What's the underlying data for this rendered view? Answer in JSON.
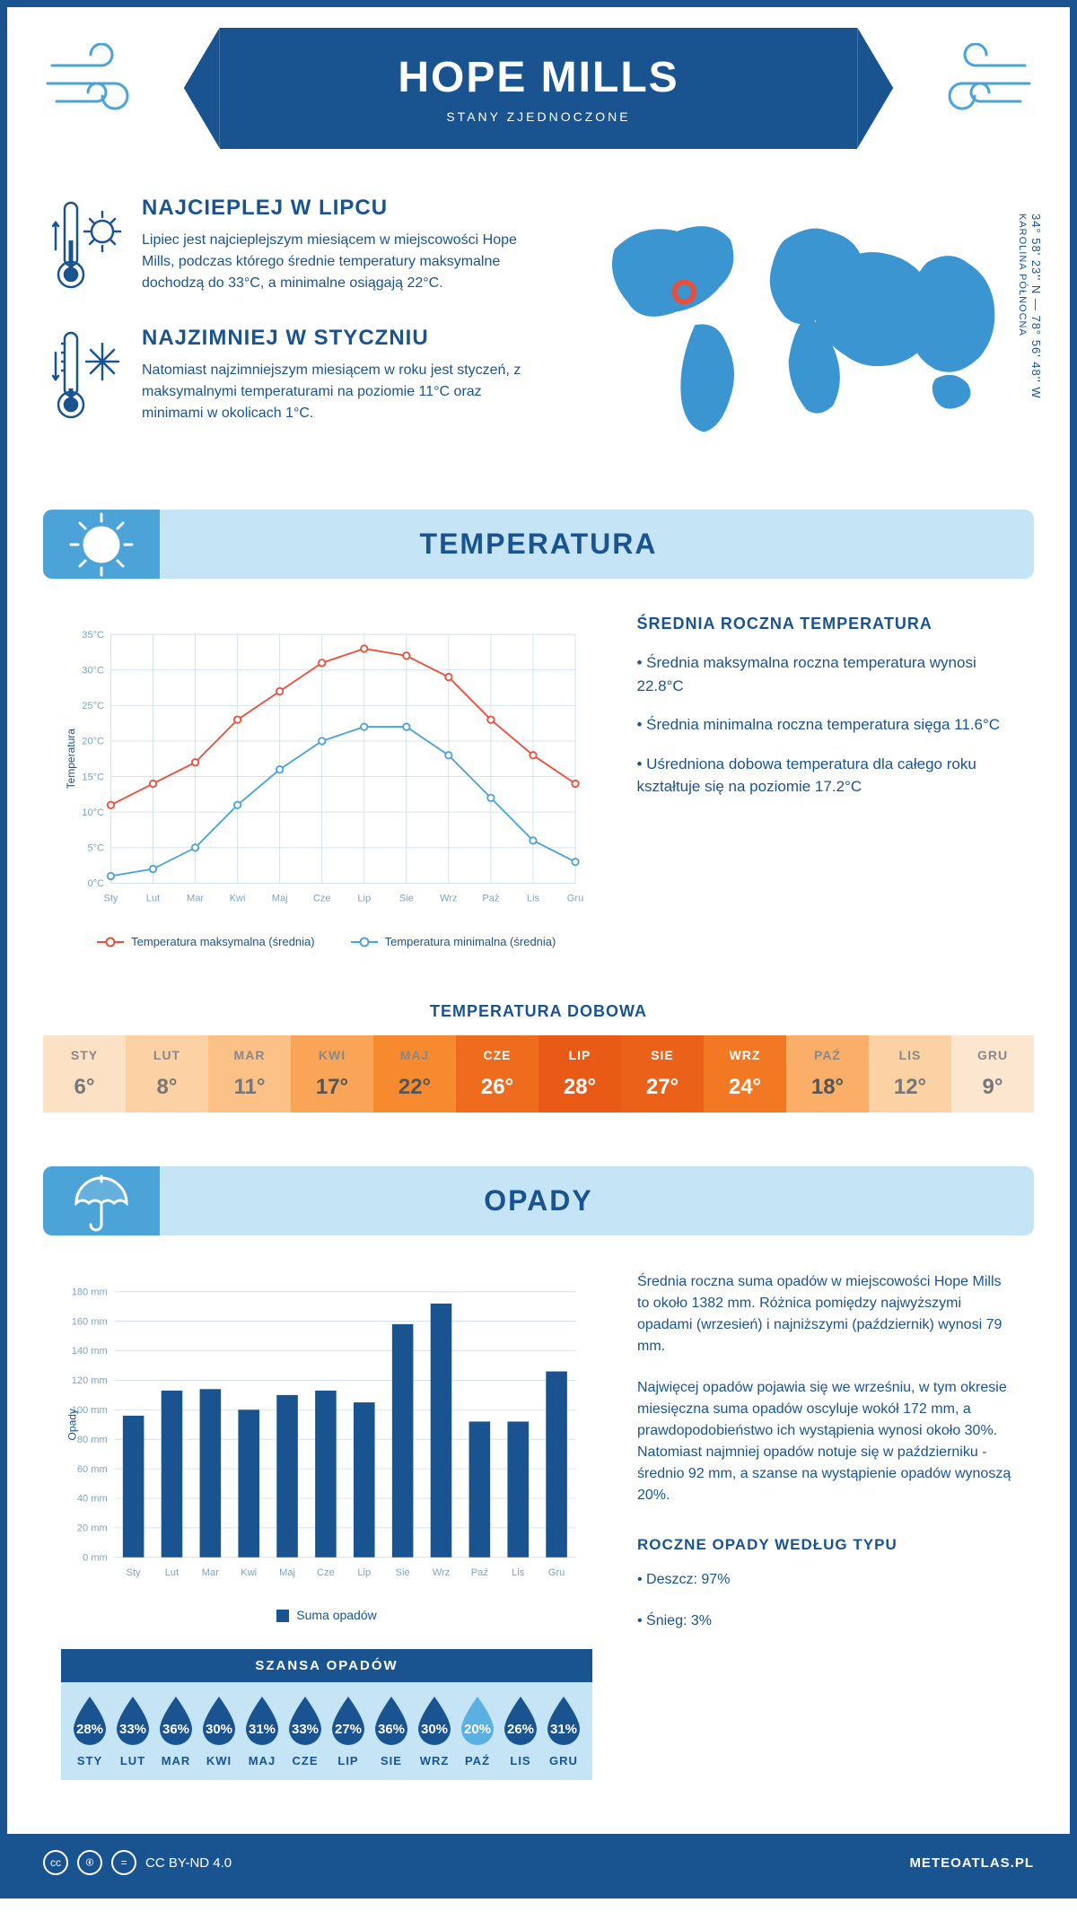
{
  "header": {
    "title": "HOPE MILLS",
    "country": "STANY ZJEDNOCZONE"
  },
  "intro": {
    "hot": {
      "title": "NAJCIEPLEJ W LIPCU",
      "text": "Lipiec jest najcieplejszym miesiącem w miejscowości Hope Mills, podczas którego średnie temperatury maksymalne dochodzą do 33°C, a minimalne osiągają 22°C."
    },
    "cold": {
      "title": "NAJZIMNIEJ W STYCZNIU",
      "text": "Natomiast najzimniejszym miesiącem w roku jest styczeń, z maksymalnymi temperaturami na poziomie 11°C oraz minimami w okolicach 1°C."
    },
    "coords": "34° 58' 23'' N — 78° 56' 48'' W",
    "region": "KAROLINA PÓŁNOCNA"
  },
  "temp_section": {
    "heading": "TEMPERATURA",
    "chart": {
      "type": "line",
      "months": [
        "Sty",
        "Lut",
        "Mar",
        "Kwi",
        "Maj",
        "Cze",
        "Lip",
        "Sie",
        "Wrz",
        "Paź",
        "Lis",
        "Gru"
      ],
      "max_series": [
        11,
        14,
        17,
        23,
        27,
        31,
        33,
        32,
        29,
        23,
        18,
        14
      ],
      "min_series": [
        1,
        2,
        5,
        11,
        16,
        20,
        22,
        22,
        18,
        12,
        6,
        3
      ],
      "ylim": [
        0,
        35
      ],
      "ytick_step": 5,
      "yunit": "°C",
      "ylabel": "Temperatura",
      "max_color": "#e8503c",
      "min_color": "#4ba3d8",
      "grid_color": "#d0e0ed",
      "axis_text_color": "#7da5c4",
      "legend_max": "Temperatura maksymalna (średnia)",
      "legend_min": "Temperatura minimalna (średnia)"
    },
    "side": {
      "title": "ŚREDNIA ROCZNA TEMPERATURA",
      "b1": "• Średnia maksymalna roczna temperatura wynosi 22.8°C",
      "b2": "• Średnia minimalna roczna temperatura sięga 11.6°C",
      "b3": "• Uśredniona dobowa temperatura dla całego roku kształtuje się na poziomie 17.2°C"
    },
    "daily": {
      "title": "TEMPERATURA DOBOWA",
      "months": [
        "STY",
        "LUT",
        "MAR",
        "KWI",
        "MAJ",
        "CZE",
        "LIP",
        "SIE",
        "WRZ",
        "PAŹ",
        "LIS",
        "GRU"
      ],
      "values": [
        "6°",
        "8°",
        "11°",
        "17°",
        "22°",
        "26°",
        "28°",
        "27°",
        "24°",
        "18°",
        "12°",
        "9°"
      ],
      "bg_colors": [
        "#fde1c4",
        "#fcd2a5",
        "#fbc186",
        "#f9a457",
        "#f78a2f",
        "#ef6c1f",
        "#e95a17",
        "#eb6119",
        "#f27824",
        "#faae68",
        "#fcd2a5",
        "#fde6cf"
      ],
      "text_colors": [
        "#888",
        "#888",
        "#888",
        "#888",
        "#888",
        "#fff",
        "#fff",
        "#fff",
        "#fff",
        "#888",
        "#888",
        "#888"
      ],
      "value_colors": [
        "#777",
        "#777",
        "#777",
        "#555",
        "#555",
        "#fff",
        "#fff",
        "#fff",
        "#fff",
        "#555",
        "#777",
        "#777"
      ]
    }
  },
  "precip_section": {
    "heading": "OPADY",
    "chart": {
      "type": "bar",
      "months": [
        "Sty",
        "Lut",
        "Mar",
        "Kwi",
        "Maj",
        "Cze",
        "Lip",
        "Sie",
        "Wrz",
        "Paź",
        "Lis",
        "Gru"
      ],
      "values": [
        96,
        113,
        114,
        100,
        110,
        113,
        105,
        158,
        172,
        92,
        92,
        126
      ],
      "ylim": [
        0,
        180
      ],
      "ytick_step": 20,
      "yunit": " mm",
      "ylabel": "Opady",
      "bar_color": "#1a5490",
      "grid_color": "#d0e0ed",
      "axis_text_color": "#7da5c4",
      "legend": "Suma opadów"
    },
    "side": {
      "p1": "Średnia roczna suma opadów w miejscowości Hope Mills to około 1382 mm. Różnica pomiędzy najwyższymi opadami (wrzesień) i najniższymi (październik) wynosi 79 mm.",
      "p2": "Najwięcej opadów pojawia się we wrześniu, w tym okresie miesięczna suma opadów oscyluje wokół 172 mm, a prawdopodobieństwo ich wystąpienia wynosi około 30%. Natomiast najmniej opadów notuje się w październiku - średnio 92 mm, a szanse na wystąpienie opadów wynoszą 20%.",
      "title": "ROCZNE OPADY WEDŁUG TYPU",
      "rain": "• Deszcz: 97%",
      "snow": "• Śnieg: 3%"
    },
    "chance": {
      "title": "SZANSA OPADÓW",
      "months": [
        "STY",
        "LUT",
        "MAR",
        "KWI",
        "MAJ",
        "CZE",
        "LIP",
        "SIE",
        "WRZ",
        "PAŹ",
        "LIS",
        "GRU"
      ],
      "values": [
        "28%",
        "33%",
        "36%",
        "30%",
        "31%",
        "33%",
        "27%",
        "36%",
        "30%",
        "20%",
        "26%",
        "31%"
      ],
      "drop_color": "#1a5490",
      "drop_min_color": "#5ab0e0",
      "min_index": 9
    }
  },
  "footer": {
    "license": "CC BY-ND 4.0",
    "site": "METEOATLAS.PL"
  },
  "colors": {
    "primary": "#1a5490",
    "light_blue": "#c5e4f5",
    "mid_blue": "#4ba3d8"
  }
}
